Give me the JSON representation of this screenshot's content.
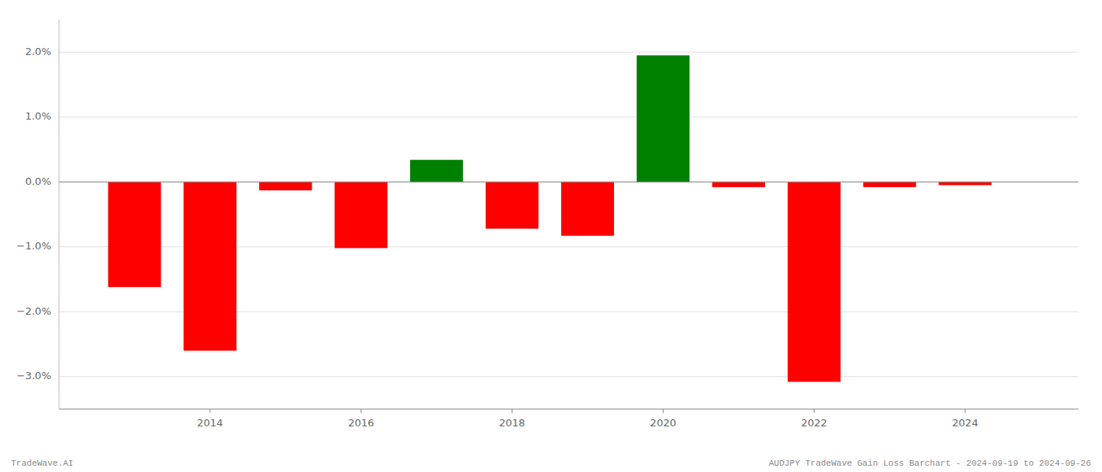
{
  "chart_data": {
    "type": "bar",
    "x": [
      2013,
      2014,
      2015,
      2016,
      2017,
      2018,
      2019,
      2020,
      2021,
      2022,
      2023,
      2024
    ],
    "values": [
      -1.62,
      -2.6,
      -0.13,
      -1.02,
      0.34,
      -0.72,
      -0.83,
      1.95,
      -0.08,
      -3.08,
      -0.08,
      -0.05
    ],
    "colors": [
      "#ff0000",
      "#ff0000",
      "#ff0000",
      "#ff0000",
      "#008000",
      "#ff0000",
      "#ff0000",
      "#008000",
      "#ff0000",
      "#ff0000",
      "#ff0000",
      "#ff0000"
    ],
    "xlim": [
      2012.0,
      2025.5
    ],
    "xticks": [
      2014,
      2016,
      2018,
      2020,
      2022,
      2024
    ],
    "ylim": [
      -3.5,
      2.5
    ],
    "yticks": [
      {
        "value": -3.0,
        "label": "−3.0%"
      },
      {
        "value": -2.0,
        "label": "−2.0%"
      },
      {
        "value": -1.0,
        "label": "−1.0%"
      },
      {
        "value": 0.0,
        "label": "0.0%"
      },
      {
        "value": 1.0,
        "label": "1.0%"
      },
      {
        "value": 2.0,
        "label": "2.0%"
      }
    ],
    "grid": true,
    "annotations": [
      "TradeWave.AI",
      "AUDJPY TradeWave Gain Loss Barchart - 2024-09-19 to 2024-09-26"
    ]
  }
}
